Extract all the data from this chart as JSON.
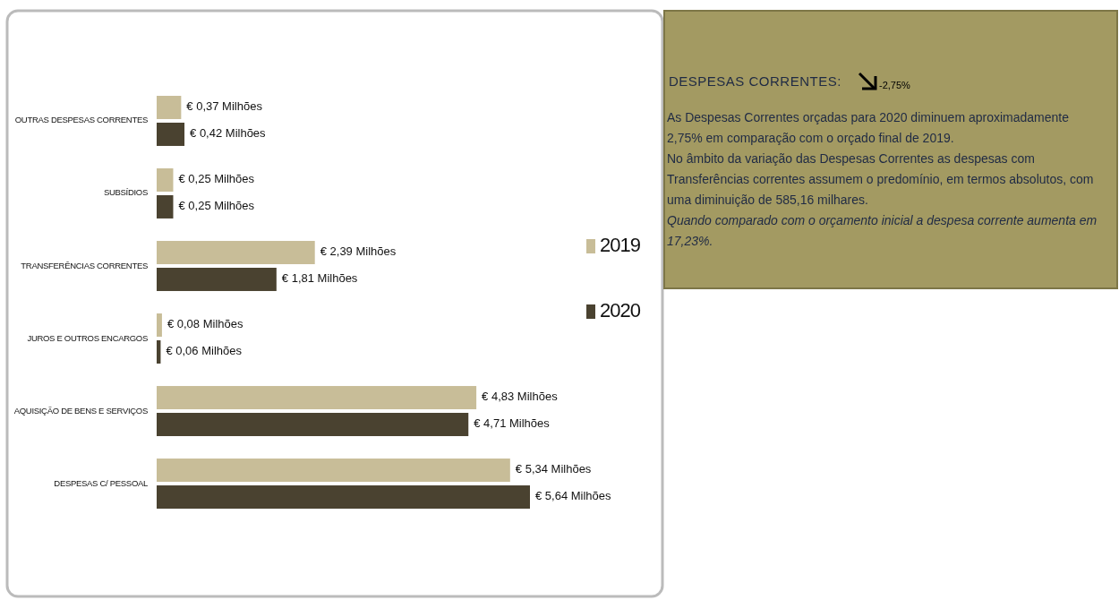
{
  "chart_data": {
    "type": "bar",
    "orientation": "horizontal",
    "legend": "right",
    "categories": [
      "OUTRAS DESPESAS CORRENTES",
      "SUBSÍDIOS",
      "TRANSFERÊNCIAS CORRENTES",
      "JUROS  E OUTROS ENCARGOS",
      "AQUISIÇÃO DE BENS E SERVIÇOS",
      "DESPESAS C/ PESSOAL"
    ],
    "series": [
      {
        "name": "2019",
        "color": "#c8bd98",
        "values": [
          0.37,
          0.25,
          2.39,
          0.08,
          4.83,
          5.34
        ],
        "value_labels": [
          "€ 0,37 Milhões",
          "€ 0,25 Milhões",
          "€ 2,39 Milhões",
          "€ 0,08 Milhões",
          "€ 4,83 Milhões",
          "€ 5,34 Milhões"
        ]
      },
      {
        "name": "2020",
        "color": "#4a4230",
        "values": [
          0.42,
          0.25,
          1.81,
          0.06,
          4.71,
          5.64
        ],
        "value_labels": [
          "€ 0,42 Milhões",
          "€ 0,25 Milhões",
          "€ 1,81 Milhões",
          "€ 0,06 Milhões",
          "€ 4,71 Milhões",
          "€ 5,64 Milhões"
        ]
      }
    ],
    "annotations": [
      "DESPESAS CORRENTES:",
      "-2,75%",
      "As Despesas Correntes orçadas para 2020 diminuem aproximadamente 2,75% em comparação com o orçado final de 2019.",
      "No âmbito da variação das  Despesas Correntes as despesas  com Transferências correntes  assumem o predomínio, em termos absolutos, com uma diminuição de 585,16 milhares.",
      "Quando comparado com o orçamento inicial a despesa corrente aumenta em 17,23%."
    ]
  }
}
